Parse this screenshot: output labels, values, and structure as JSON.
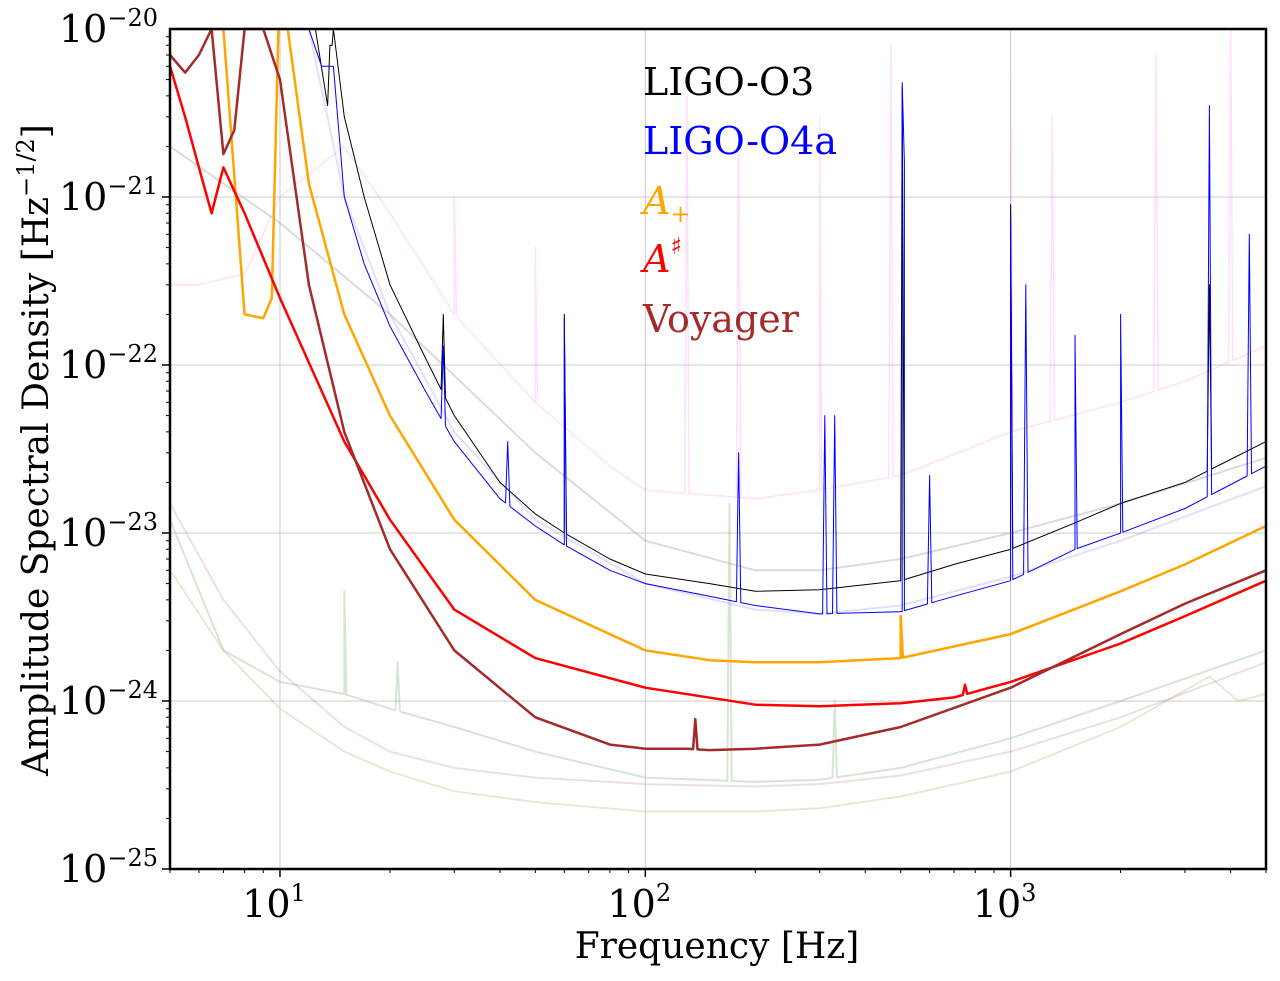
{
  "chart_data": {
    "type": "line",
    "xscale": "log",
    "yscale": "log",
    "xlim": [
      5,
      5000
    ],
    "ylim": [
      1e-25,
      1e-20
    ],
    "grid": true,
    "xlabel": "Frequency [Hz]",
    "ylabel": {
      "prefix": "Amplitude Spectral Density [Hz",
      "exponent": "−1/2",
      "suffix": "]"
    },
    "x_ticks": [
      {
        "value": 10,
        "base": "10",
        "exp": "1"
      },
      {
        "value": 100,
        "base": "10",
        "exp": "2"
      },
      {
        "value": 1000,
        "base": "10",
        "exp": "3"
      }
    ],
    "y_ticks": [
      {
        "value": 1e-25,
        "base": "10",
        "exp": "−25"
      },
      {
        "value": 1e-24,
        "base": "10",
        "exp": "−24"
      },
      {
        "value": 1e-23,
        "base": "10",
        "exp": "−23"
      },
      {
        "value": 1e-22,
        "base": "10",
        "exp": "−22"
      },
      {
        "value": 1e-21,
        "base": "10",
        "exp": "−21"
      },
      {
        "value": 1e-20,
        "base": "10",
        "exp": "−20"
      }
    ],
    "legend": [
      {
        "id": "o3",
        "label": "LIGO-O3",
        "color": "#000000"
      },
      {
        "id": "o4a",
        "label": "LIGO-O4a",
        "color": "#0000ff"
      },
      {
        "id": "aplus",
        "label": "A",
        "sub": "+",
        "italic": true,
        "color": "#ffa500"
      },
      {
        "id": "asharp",
        "label": "A",
        "sup": "♯",
        "italic": true,
        "color": "#ff0000"
      },
      {
        "id": "voyager",
        "label": "Voyager",
        "color": "#a52a2a"
      }
    ],
    "series": [
      {
        "name": "LIGO-O3",
        "color": "#000000",
        "width": 1,
        "x": [
          12.5,
          13.5,
          14,
          15,
          17,
          20,
          25,
          30,
          40,
          50,
          60,
          80,
          100,
          150,
          200,
          300,
          500,
          700,
          1000,
          1500,
          2000,
          3000,
          5000
        ],
        "y": [
          1e-20,
          3.5e-21,
          1e-20,
          3e-21,
          1e-21,
          3e-22,
          1.1e-22,
          5e-23,
          2e-23,
          1.3e-23,
          1e-23,
          7e-24,
          5.7e-24,
          5e-24,
          4.5e-24,
          4.6e-24,
          5.2e-24,
          6.5e-24,
          8e-24,
          1.15e-23,
          1.5e-23,
          2e-23,
          3.5e-23
        ],
        "peaks": [
          [
            13.7,
            8e-21
          ],
          [
            28,
            2e-22
          ],
          [
            60,
            2e-22
          ],
          [
            505,
            4.5e-21
          ],
          [
            1000,
            9e-22
          ],
          [
            3500,
            3e-22
          ]
        ]
      },
      {
        "name": "LIGO-O4a",
        "color": "#0000ff",
        "width": 1,
        "x": [
          12,
          13,
          14,
          15,
          17,
          20,
          25,
          30,
          40,
          50,
          60,
          80,
          100,
          150,
          200,
          300,
          500,
          700,
          1000,
          1500,
          2000,
          3000,
          5000
        ],
        "y": [
          1e-20,
          6e-21,
          6e-21,
          1e-21,
          4e-22,
          1.7e-22,
          7e-23,
          3.5e-23,
          1.6e-23,
          1.1e-23,
          8.5e-24,
          6e-24,
          5e-24,
          4.2e-24,
          3.7e-24,
          3.3e-24,
          3.4e-24,
          4.2e-24,
          5.2e-24,
          8e-24,
          1e-23,
          1.4e-23,
          2.5e-23
        ],
        "peaks": [
          [
            28,
            1.3e-22
          ],
          [
            42,
            3.5e-23
          ],
          [
            60,
            1.9e-22
          ],
          [
            180,
            3e-23
          ],
          [
            310,
            5e-23
          ],
          [
            330,
            5e-23
          ],
          [
            505,
            4.8e-21
          ],
          [
            512,
            1.6e-21
          ],
          [
            600,
            2.2e-23
          ],
          [
            1000,
            8e-22
          ],
          [
            1100,
            3e-22
          ],
          [
            1500,
            1.5e-22
          ],
          [
            2000,
            2e-22
          ],
          [
            3500,
            3.5e-21
          ],
          [
            4500,
            6e-22
          ]
        ]
      },
      {
        "name": "A+",
        "color": "#ffa500",
        "width": 2.5,
        "x": [
          5,
          6,
          7,
          8,
          9,
          9.5,
          9.9,
          10.5,
          12,
          15,
          20,
          30,
          50,
          100,
          150,
          200,
          300,
          500,
          1000,
          2000,
          3000,
          5000
        ],
        "y": [
          1e-20,
          1e-20,
          1e-20,
          2e-22,
          1.9e-22,
          2.5e-22,
          1e-20,
          1e-20,
          1.2e-21,
          2e-22,
          5e-23,
          1.2e-23,
          4e-24,
          2e-24,
          1.75e-24,
          1.7e-24,
          1.7e-24,
          1.8e-24,
          2.5e-24,
          4.5e-24,
          6.5e-24,
          1.1e-23
        ],
        "peaks": [
          [
            500,
            3.2e-24
          ]
        ]
      },
      {
        "name": "A#",
        "color": "#ff0000",
        "width": 2.5,
        "x": [
          5,
          5.5,
          6,
          6.5,
          7,
          8,
          10,
          15,
          20,
          30,
          50,
          100,
          200,
          300,
          500,
          700,
          1000,
          2000,
          3000,
          5000
        ],
        "y": [
          6e-21,
          3e-21,
          1.5e-21,
          8e-22,
          1.5e-21,
          8e-22,
          2.5e-22,
          3.5e-23,
          1.2e-23,
          3.5e-24,
          1.8e-24,
          1.2e-24,
          9.5e-25,
          9.3e-25,
          9.7e-25,
          1.05e-24,
          1.3e-24,
          2.2e-24,
          3.2e-24,
          5.2e-24
        ],
        "peaks": [
          [
            750,
            1.25e-24
          ]
        ]
      },
      {
        "name": "Voyager",
        "color": "#a52a2a",
        "width": 2.5,
        "x": [
          5,
          5.5,
          6,
          6.5,
          7,
          7.5,
          8,
          9,
          10,
          12,
          15,
          20,
          30,
          50,
          80,
          100,
          130,
          150,
          200,
          300,
          500,
          1000,
          2000,
          3000,
          5000
        ],
        "y": [
          7e-21,
          5.5e-21,
          7e-21,
          1e-20,
          1.8e-21,
          2.5e-21,
          1e-20,
          1e-20,
          5e-21,
          3e-22,
          4e-23,
          8e-24,
          2e-24,
          8e-25,
          5.5e-25,
          5.2e-25,
          5.2e-25,
          5.1e-25,
          5.2e-25,
          5.5e-25,
          7e-25,
          1.2e-24,
          2.5e-24,
          3.8e-24,
          6e-24
        ],
        "peaks": [
          [
            137,
            7.8e-25
          ]
        ]
      },
      {
        "name": "background-pink",
        "color": "#ff66dd",
        "width": 1.5,
        "opacity": 0.2,
        "x": [
          5,
          6,
          8,
          10,
          15,
          20,
          30,
          50,
          80,
          100,
          200,
          300,
          500,
          1000,
          2000,
          3000,
          5000
        ],
        "y": [
          3e-22,
          3e-22,
          3.5e-22,
          1e-21,
          2e-21,
          8e-22,
          2e-22,
          6e-23,
          2.5e-23,
          1.8e-23,
          1.6e-23,
          1.8e-23,
          2.2e-23,
          4e-23,
          6e-23,
          8e-23,
          1.3e-22
        ],
        "peaks": [
          [
            30,
            1e-21
          ],
          [
            50,
            5e-22
          ],
          [
            130,
            4e-21
          ],
          [
            180,
            2e-21
          ],
          [
            300,
            3e-21
          ],
          [
            470,
            8e-21
          ],
          [
            1000,
            5e-21
          ],
          [
            1300,
            3e-21
          ],
          [
            2500,
            7e-21
          ],
          [
            4000,
            1e-20
          ]
        ]
      },
      {
        "name": "background-gray",
        "color": "#999999",
        "width": 2,
        "opacity": 0.35,
        "x": [
          5,
          10,
          20,
          50,
          100,
          200,
          300,
          500,
          1000,
          2000,
          5000
        ],
        "y": [
          2e-21,
          7e-22,
          2e-22,
          3e-23,
          9e-24,
          6e-24,
          6e-24,
          7e-24,
          1e-23,
          1.5e-23,
          2.8e-23
        ]
      },
      {
        "name": "background-lavender",
        "color": "#8888ff",
        "width": 2,
        "opacity": 0.25,
        "x": [
          12,
          15,
          20,
          30,
          50,
          100,
          200,
          300,
          500,
          1000,
          2000,
          5000
        ],
        "y": [
          1e-20,
          1e-21,
          2e-22,
          4e-23,
          1.2e-23,
          5e-24,
          3.5e-24,
          3.3e-24,
          3.7e-24,
          5.5e-24,
          9e-24,
          1.9e-23
        ]
      },
      {
        "name": "background-green-1",
        "color": "#7fa870",
        "width": 2,
        "opacity": 0.3,
        "x": [
          5,
          7,
          10,
          15,
          20,
          30,
          50,
          100,
          200,
          300,
          500,
          1000,
          2000,
          5000
        ],
        "y": [
          1.2e-23,
          2e-24,
          1.3e-24,
          1.1e-24,
          9e-25,
          7e-25,
          5e-25,
          3.5e-25,
          3.3e-25,
          3.4e-25,
          4e-25,
          6e-25,
          1e-24,
          2e-24
        ],
        "peaks": [
          [
            15,
            4.5e-24
          ],
          [
            21,
            1.7e-24
          ],
          [
            170,
            1.5e-23
          ],
          [
            330,
            1e-24
          ]
        ]
      },
      {
        "name": "background-green-2",
        "color": "#a8b870",
        "width": 2,
        "opacity": 0.3,
        "x": [
          5,
          7,
          10,
          15,
          20,
          30,
          50,
          100,
          200,
          300,
          500,
          1000,
          2000,
          3500,
          4200,
          5000
        ],
        "y": [
          6e-24,
          2e-24,
          9e-25,
          5e-25,
          3.8e-25,
          2.9e-25,
          2.5e-25,
          2.2e-25,
          2.2e-25,
          2.3e-25,
          2.7e-25,
          3.8e-25,
          7e-25,
          1.4e-24,
          1e-24,
          1.1e-24
        ]
      },
      {
        "name": "background-rose",
        "color": "#c08080",
        "width": 2,
        "opacity": 0.25,
        "x": [
          5,
          7,
          10,
          15,
          20,
          30,
          50,
          100,
          200,
          300,
          500,
          1000,
          2000,
          5000
        ],
        "y": [
          1.5e-23,
          4e-24,
          1.5e-24,
          7e-25,
          5e-25,
          4e-25,
          3.5e-25,
          3.2e-25,
          3.1e-25,
          3.2e-25,
          3.6e-25,
          5e-25,
          8e-25,
          1.7e-24
        ]
      }
    ]
  }
}
